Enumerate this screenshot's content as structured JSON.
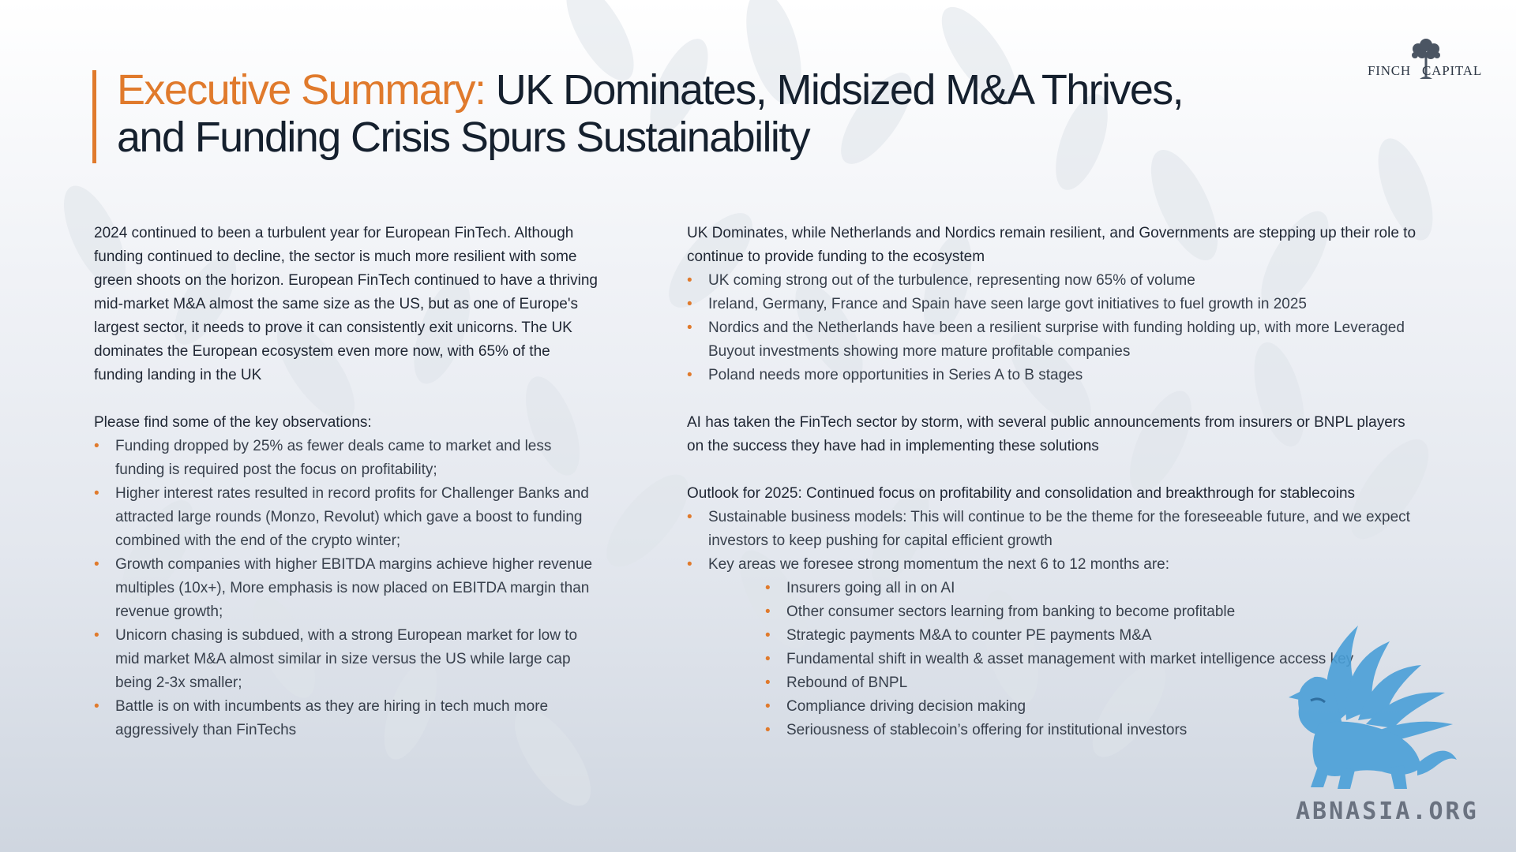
{
  "header": {
    "title_accent": "Executive Summary:",
    "title_rest_line1": "UK Dominates, Midsized M&A Thrives,",
    "title_rest_line2": "and Funding Crisis Spurs Sustainability"
  },
  "logo": {
    "left_word": "FINCH",
    "right_word": "CAPITAL",
    "icon": "tree-icon"
  },
  "left_column": {
    "intro": "2024 continued to been a turbulent year for European FinTech. Although funding continued to decline, the sector is much more resilient with some green shoots on the horizon. European FinTech continued to have a thriving mid-market M&A almost the same size as the US, but as one of Europe's largest sector, it needs to prove it can consistently exit unicorns. The UK dominates the European ecosystem even more now, with 65% of the funding landing in the UK",
    "observations_heading": "Please find some of the key observations:",
    "observations": [
      "Funding dropped by 25% as fewer deals came to market and less funding is required post the focus on profitability;",
      "Higher interest rates resulted in record profits for Challenger Banks and attracted large rounds (Monzo, Revolut) which gave a boost to funding combined with the end of the crypto winter;",
      "Growth companies with higher EBITDA margins achieve higher revenue multiples (10x+), More emphasis is now placed on EBITDA margin than revenue growth;",
      "Unicorn chasing is subdued, with a strong European market for low to mid market M&A almost similar in size versus the US while large cap being 2-3x smaller;",
      "Battle is on with incumbents as they are hiring in tech much more aggressively than FinTechs"
    ]
  },
  "right_column": {
    "uk_heading": "UK Dominates, while Netherlands and Nordics remain resilient, and Governments are stepping up their role to continue to provide funding to the ecosystem",
    "uk_points": [
      "UK coming strong out of the turbulence, representing now 65% of volume",
      "Ireland, Germany, France and Spain have seen large govt initiatives to fuel growth in 2025",
      "Nordics and the Netherlands have been a resilient surprise with funding holding up, with more Leveraged Buyout investments showing more mature profitable companies",
      "Poland needs more opportunities in Series A to B stages"
    ],
    "ai_paragraph": "AI has taken the FinTech sector by storm, with several public announcements from insurers or BNPL players on the success they have had in implementing these solutions",
    "outlook_heading": "Outlook for 2025: Continued focus on profitability and consolidation and breakthrough for stablecoins",
    "outlook_points": [
      "Sustainable business models: This will continue to be the theme for the foreseeable future, and we expect investors to keep pushing for capital efficient growth",
      "Key areas we foresee strong momentum the next 6 to 12 months are:"
    ],
    "momentum_areas": [
      "Insurers going all in on AI",
      "Other consumer sectors learning from banking to become profitable",
      "Strategic payments M&A to counter PE payments M&A",
      "Fundamental shift in wealth & asset management with market intelligence access key",
      "Rebound of BNPL",
      "Compliance driving decision making",
      "Seriousness of stablecoin’s offering for institutional investors"
    ]
  },
  "watermark": {
    "text": "ABNASIA.ORG",
    "icon": "griffin-icon"
  },
  "colors": {
    "accent": "#e07a2c",
    "title_text": "#15202e",
    "body_text": "#1f2633",
    "watermark_blue": "#4a9fd8"
  }
}
